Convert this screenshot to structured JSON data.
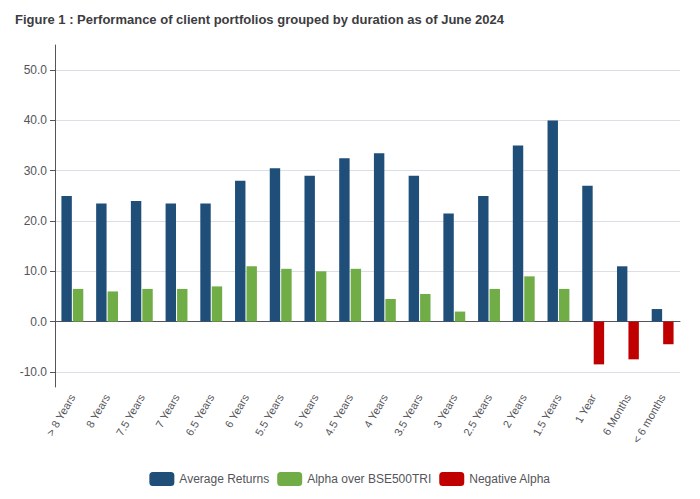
{
  "chart_data": {
    "type": "bar",
    "title": "Figure 1 : Performance of client portfolios grouped by duration as of June 2024",
    "categories": [
      "> 8 Years",
      "8 Years",
      "7.5 Years",
      "7 Years",
      "6.5 Years",
      "6 Years",
      "5.5 Years",
      "5 Years",
      "4.5 Years",
      "4 Years",
      "3.5 Years",
      "3 Years",
      "2.5 Years",
      "2 Years",
      "1.5 Years",
      "1 Year",
      "6 Months",
      "< 6 months"
    ],
    "series": [
      {
        "name": "Average Returns",
        "color": "#1F4E79",
        "values": [
          25.0,
          23.5,
          24.0,
          23.5,
          23.5,
          28.0,
          30.5,
          29.0,
          32.5,
          33.5,
          29.0,
          21.5,
          25.0,
          35.0,
          40.0,
          27.0,
          11.0,
          2.5
        ]
      },
      {
        "name": "Alpha over BSE500TRI",
        "color": "#70AD47",
        "values": [
          6.5,
          6.0,
          6.5,
          6.5,
          7.0,
          11.0,
          10.5,
          10.0,
          10.5,
          4.5,
          5.5,
          2.0,
          6.5,
          9.0,
          6.5,
          null,
          null,
          null
        ]
      },
      {
        "name": "Negative Alpha",
        "color": "#C00000",
        "values": [
          null,
          null,
          null,
          null,
          null,
          null,
          null,
          null,
          null,
          null,
          null,
          null,
          null,
          null,
          null,
          -8.5,
          -7.5,
          -4.5
        ]
      }
    ],
    "ylim": [
      -13.0,
      55.0
    ],
    "yticks": [
      {
        "value": -10,
        "label": "-10.0"
      },
      {
        "value": 0,
        "label": "0.0"
      },
      {
        "value": 10,
        "label": "10.0"
      },
      {
        "value": 20,
        "label": "20.0"
      },
      {
        "value": 30,
        "label": "30.0"
      },
      {
        "value": 40,
        "label": "40.0"
      },
      {
        "value": 50,
        "label": "50.0"
      }
    ],
    "grid": true,
    "legend": "bottom"
  }
}
